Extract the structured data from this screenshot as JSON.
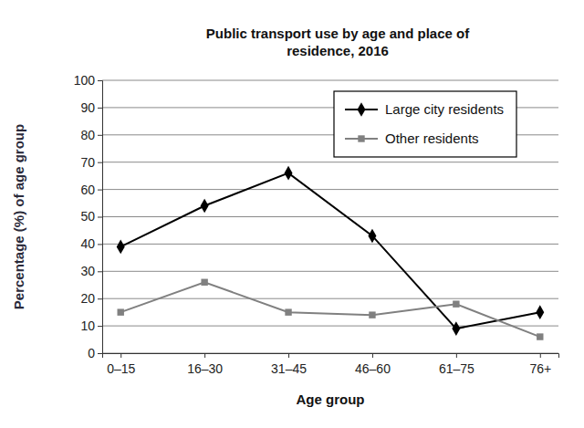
{
  "chart_data": {
    "type": "line",
    "title": "Public transport use by age and place of residence, 2016",
    "x_label": "Age group",
    "y_label": "Percentage (%) of age group",
    "categories": [
      "0–15",
      "16–30",
      "31–45",
      "46–60",
      "61–75",
      "76+"
    ],
    "series": [
      {
        "name": "Large city residents",
        "color": "#000000",
        "marker": "diamond",
        "values": [
          39,
          54,
          66,
          43,
          9,
          15
        ]
      },
      {
        "name": "Other residents",
        "color": "#808080",
        "marker": "square",
        "values": [
          15,
          26,
          15,
          14,
          18,
          6
        ]
      }
    ],
    "ylim": [
      0,
      100
    ],
    "yticks": [
      0,
      10,
      20,
      30,
      40,
      50,
      60,
      70,
      80,
      90,
      100
    ],
    "grid": true,
    "legend": "top-right"
  }
}
